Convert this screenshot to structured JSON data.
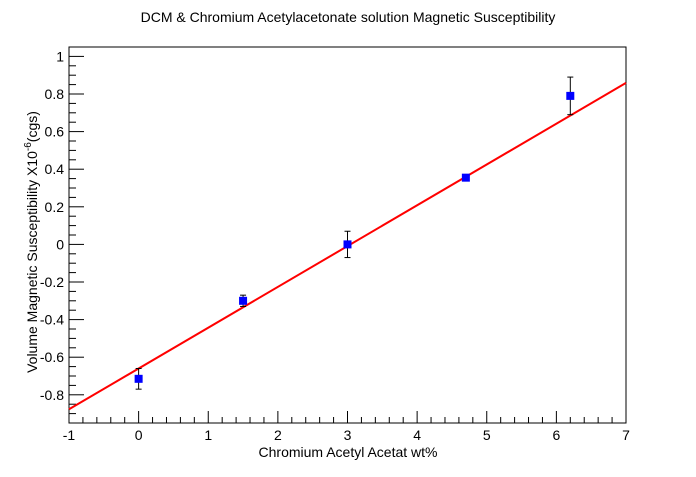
{
  "chart_data": {
    "type": "scatter",
    "title": "DCM & Chromium Acetylacetonate solution Magnetic Susceptibility",
    "xlabel": "Chromium Acetyl Acetat wt%",
    "ylabel_main": "Volume Magnetic Susceptibility X10",
    "ylabel_sup": "-6",
    "ylabel_unit": "(cgs)",
    "xlim": [
      -1,
      7
    ],
    "ylim": [
      -0.95,
      1.05
    ],
    "xticks": [
      -1,
      0,
      1,
      2,
      3,
      4,
      5,
      6,
      7
    ],
    "yticks": [
      -0.8,
      -0.6,
      -0.4,
      -0.2,
      0,
      0.2,
      0.4,
      0.6,
      0.8,
      1
    ],
    "grid": false,
    "series": [
      {
        "kind": "points",
        "color": "#0000ff",
        "points": [
          {
            "x": 0.0,
            "y": -0.715,
            "err": 0.055
          },
          {
            "x": 1.5,
            "y": -0.3,
            "err": 0.03
          },
          {
            "x": 3.0,
            "y": 0.0,
            "err": 0.07
          },
          {
            "x": 4.7,
            "y": 0.355,
            "err": 0.015
          },
          {
            "x": 6.2,
            "y": 0.79,
            "err": 0.1
          }
        ]
      },
      {
        "kind": "fit-line",
        "color": "#ff0000",
        "slope": 0.217,
        "intercept": -0.66,
        "x_range": [
          -1,
          7
        ]
      }
    ]
  }
}
